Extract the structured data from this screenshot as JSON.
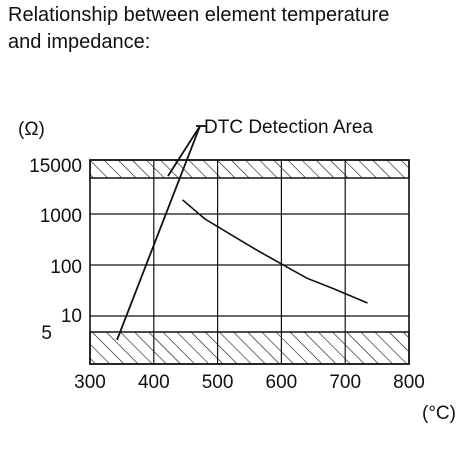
{
  "heading": {
    "line1": "Relationship between element temperature",
    "line2": "and impedance:"
  },
  "chart_data": {
    "type": "line",
    "title": "Relationship between element temperature and impedance:",
    "xlabel": "(°C)",
    "ylabel": "(Ω)",
    "xlim": [
      300,
      800
    ],
    "x_ticks": [
      "300",
      "400",
      "500",
      "600",
      "700",
      "800"
    ],
    "y_ticks": [
      "5",
      "10",
      "100",
      "1000",
      "15000"
    ],
    "y_scale": "log",
    "grid": true,
    "series": [
      {
        "x": [
          445,
          480,
          520,
          560,
          600,
          640,
          680,
          735
        ],
        "y": [
          1900,
          800,
          400,
          200,
          105,
          55,
          35,
          18
        ]
      }
    ],
    "annotation": {
      "text": "DTC Detection Area",
      "regions": [
        "impedance above 15000 Ω",
        "impedance below 5 Ω"
      ]
    }
  }
}
